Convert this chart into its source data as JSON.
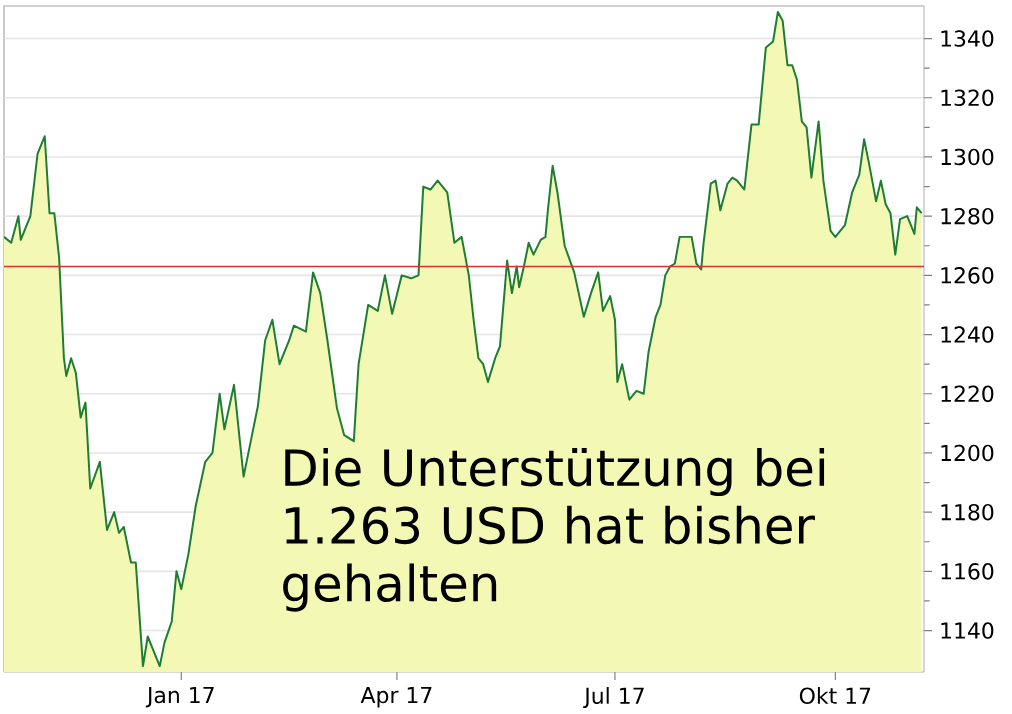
{
  "chart_data": {
    "type": "area",
    "x": [
      "2016-10-19",
      "2016-10-22",
      "2016-10-25",
      "2016-10-26",
      "2016-10-30",
      "2016-11-02",
      "2016-11-05",
      "2016-11-07",
      "2016-11-09",
      "2016-11-11",
      "2016-11-13",
      "2016-11-14",
      "2016-11-16",
      "2016-11-18",
      "2016-11-20",
      "2016-11-22",
      "2016-11-24",
      "2016-11-28",
      "2016-12-01",
      "2016-12-04",
      "2016-12-06",
      "2016-12-08",
      "2016-12-11",
      "2016-12-13",
      "2016-12-16",
      "2016-12-18",
      "2016-12-20",
      "2016-12-23",
      "2016-12-25",
      "2016-12-28",
      "2016-12-30",
      "2017-01-01",
      "2017-01-04",
      "2017-01-07",
      "2017-01-11",
      "2017-01-14",
      "2017-01-17",
      "2017-01-19",
      "2017-01-23",
      "2017-01-27",
      "2017-01-30",
      "2017-02-02",
      "2017-02-05",
      "2017-02-08",
      "2017-02-11",
      "2017-02-15",
      "2017-02-17",
      "2017-02-22",
      "2017-02-25",
      "2017-02-28",
      "2017-03-03",
      "2017-03-07",
      "2017-03-10",
      "2017-03-14",
      "2017-03-16",
      "2017-03-20",
      "2017-03-24",
      "2017-03-27",
      "2017-03-30",
      "2017-04-03",
      "2017-04-07",
      "2017-04-10",
      "2017-04-12",
      "2017-04-15",
      "2017-04-18",
      "2017-04-22",
      "2017-04-25",
      "2017-04-28",
      "2017-05-01",
      "2017-05-03",
      "2017-05-05",
      "2017-05-07",
      "2017-05-09",
      "2017-05-12",
      "2017-05-14",
      "2017-05-17",
      "2017-05-19",
      "2017-05-21",
      "2017-05-22",
      "2017-05-24",
      "2017-05-26",
      "2017-05-28",
      "2017-05-31",
      "2017-06-02",
      "2017-06-03",
      "2017-06-05",
      "2017-06-07",
      "2017-06-10",
      "2017-06-14",
      "2017-06-18",
      "2017-06-21",
      "2017-06-24",
      "2017-06-26",
      "2017-06-29",
      "2017-07-01",
      "2017-07-02",
      "2017-07-04",
      "2017-07-07",
      "2017-07-10",
      "2017-07-13",
      "2017-07-15",
      "2017-07-18",
      "2017-07-20",
      "2017-07-22",
      "2017-07-24",
      "2017-07-26",
      "2017-07-28",
      "2017-08-02",
      "2017-08-04",
      "2017-08-06",
      "2017-08-07",
      "2017-08-10",
      "2017-08-12",
      "2017-08-14",
      "2017-08-17",
      "2017-08-19",
      "2017-08-21",
      "2017-08-24",
      "2017-08-27",
      "2017-08-30",
      "2017-09-02",
      "2017-09-05",
      "2017-09-07",
      "2017-09-09",
      "2017-09-11",
      "2017-09-13",
      "2017-09-15",
      "2017-09-17",
      "2017-09-19",
      "2017-09-21",
      "2017-09-24",
      "2017-09-26",
      "2017-09-29",
      "2017-10-01",
      "2017-10-05",
      "2017-10-08",
      "2017-10-11",
      "2017-10-13",
      "2017-10-15",
      "2017-10-18",
      "2017-10-20",
      "2017-10-22",
      "2017-10-24",
      "2017-10-26",
      "2017-10-28",
      "2017-10-31",
      "2017-11-03",
      "2017-11-04",
      "2017-11-06"
    ],
    "series": [
      {
        "color": "#1e7d32",
        "values": [
          1273,
          1271,
          1280,
          1272,
          1280,
          1301,
          1307,
          1281,
          1281,
          1266,
          1232,
          1226,
          1232,
          1227,
          1212,
          1217,
          1188,
          1197,
          1174,
          1180,
          1173,
          1175,
          1163,
          1163,
          1128,
          1138,
          1134,
          1128,
          1136,
          1143,
          1160,
          1154,
          1166,
          1182,
          1197,
          1200,
          1220,
          1208,
          1223,
          1192,
          1204,
          1216,
          1238,
          1245,
          1230,
          1238,
          1243,
          1241,
          1261,
          1254,
          1238,
          1215,
          1206,
          1204,
          1230,
          1250,
          1248,
          1260,
          1247,
          1260,
          1259,
          1260,
          1290,
          1289,
          1292,
          1288,
          1271,
          1273,
          1260,
          1245,
          1232,
          1230,
          1224,
          1232,
          1236,
          1265,
          1254,
          1263,
          1256,
          1263,
          1271,
          1267,
          1272,
          1273,
          1282,
          1297,
          1288,
          1270,
          1261,
          1246,
          1254,
          1261,
          1248,
          1253,
          1245,
          1224,
          1230,
          1218,
          1221,
          1220,
          1234,
          1246,
          1250,
          1260,
          1263,
          1264,
          1273,
          1273,
          1264,
          1262,
          1271,
          1291,
          1292,
          1282,
          1291,
          1293,
          1292,
          1289,
          1311,
          1311,
          1337,
          1339,
          1349,
          1346,
          1331,
          1331,
          1326,
          1312,
          1310,
          1293,
          1312,
          1292,
          1275,
          1273,
          1277,
          1288,
          1294,
          1306,
          1298,
          1285,
          1292,
          1284,
          1281,
          1267,
          1279,
          1280,
          1274,
          1283,
          1281
        ]
      }
    ],
    "xlim": [
      "2016-10-19",
      "2017-11-07"
    ],
    "xticks": [
      {
        "value": "2017-01-01",
        "label": "Jan 17"
      },
      {
        "value": "2017-04-01",
        "label": "Apr 17"
      },
      {
        "value": "2017-07-01",
        "label": "Jul 17"
      },
      {
        "value": "2017-10-01",
        "label": "Okt 17"
      }
    ],
    "ylim": [
      1126,
      1351
    ],
    "yticks": [
      1140,
      1160,
      1180,
      1200,
      1220,
      1240,
      1260,
      1280,
      1300,
      1320,
      1340
    ],
    "grid": "y",
    "ref_lines": [
      {
        "axis": "y",
        "value": 1263,
        "color": "#e03030"
      }
    ],
    "annotations": [
      "Die Unterstützung bei 1.263 USD hat bisher gehalten"
    ]
  }
}
